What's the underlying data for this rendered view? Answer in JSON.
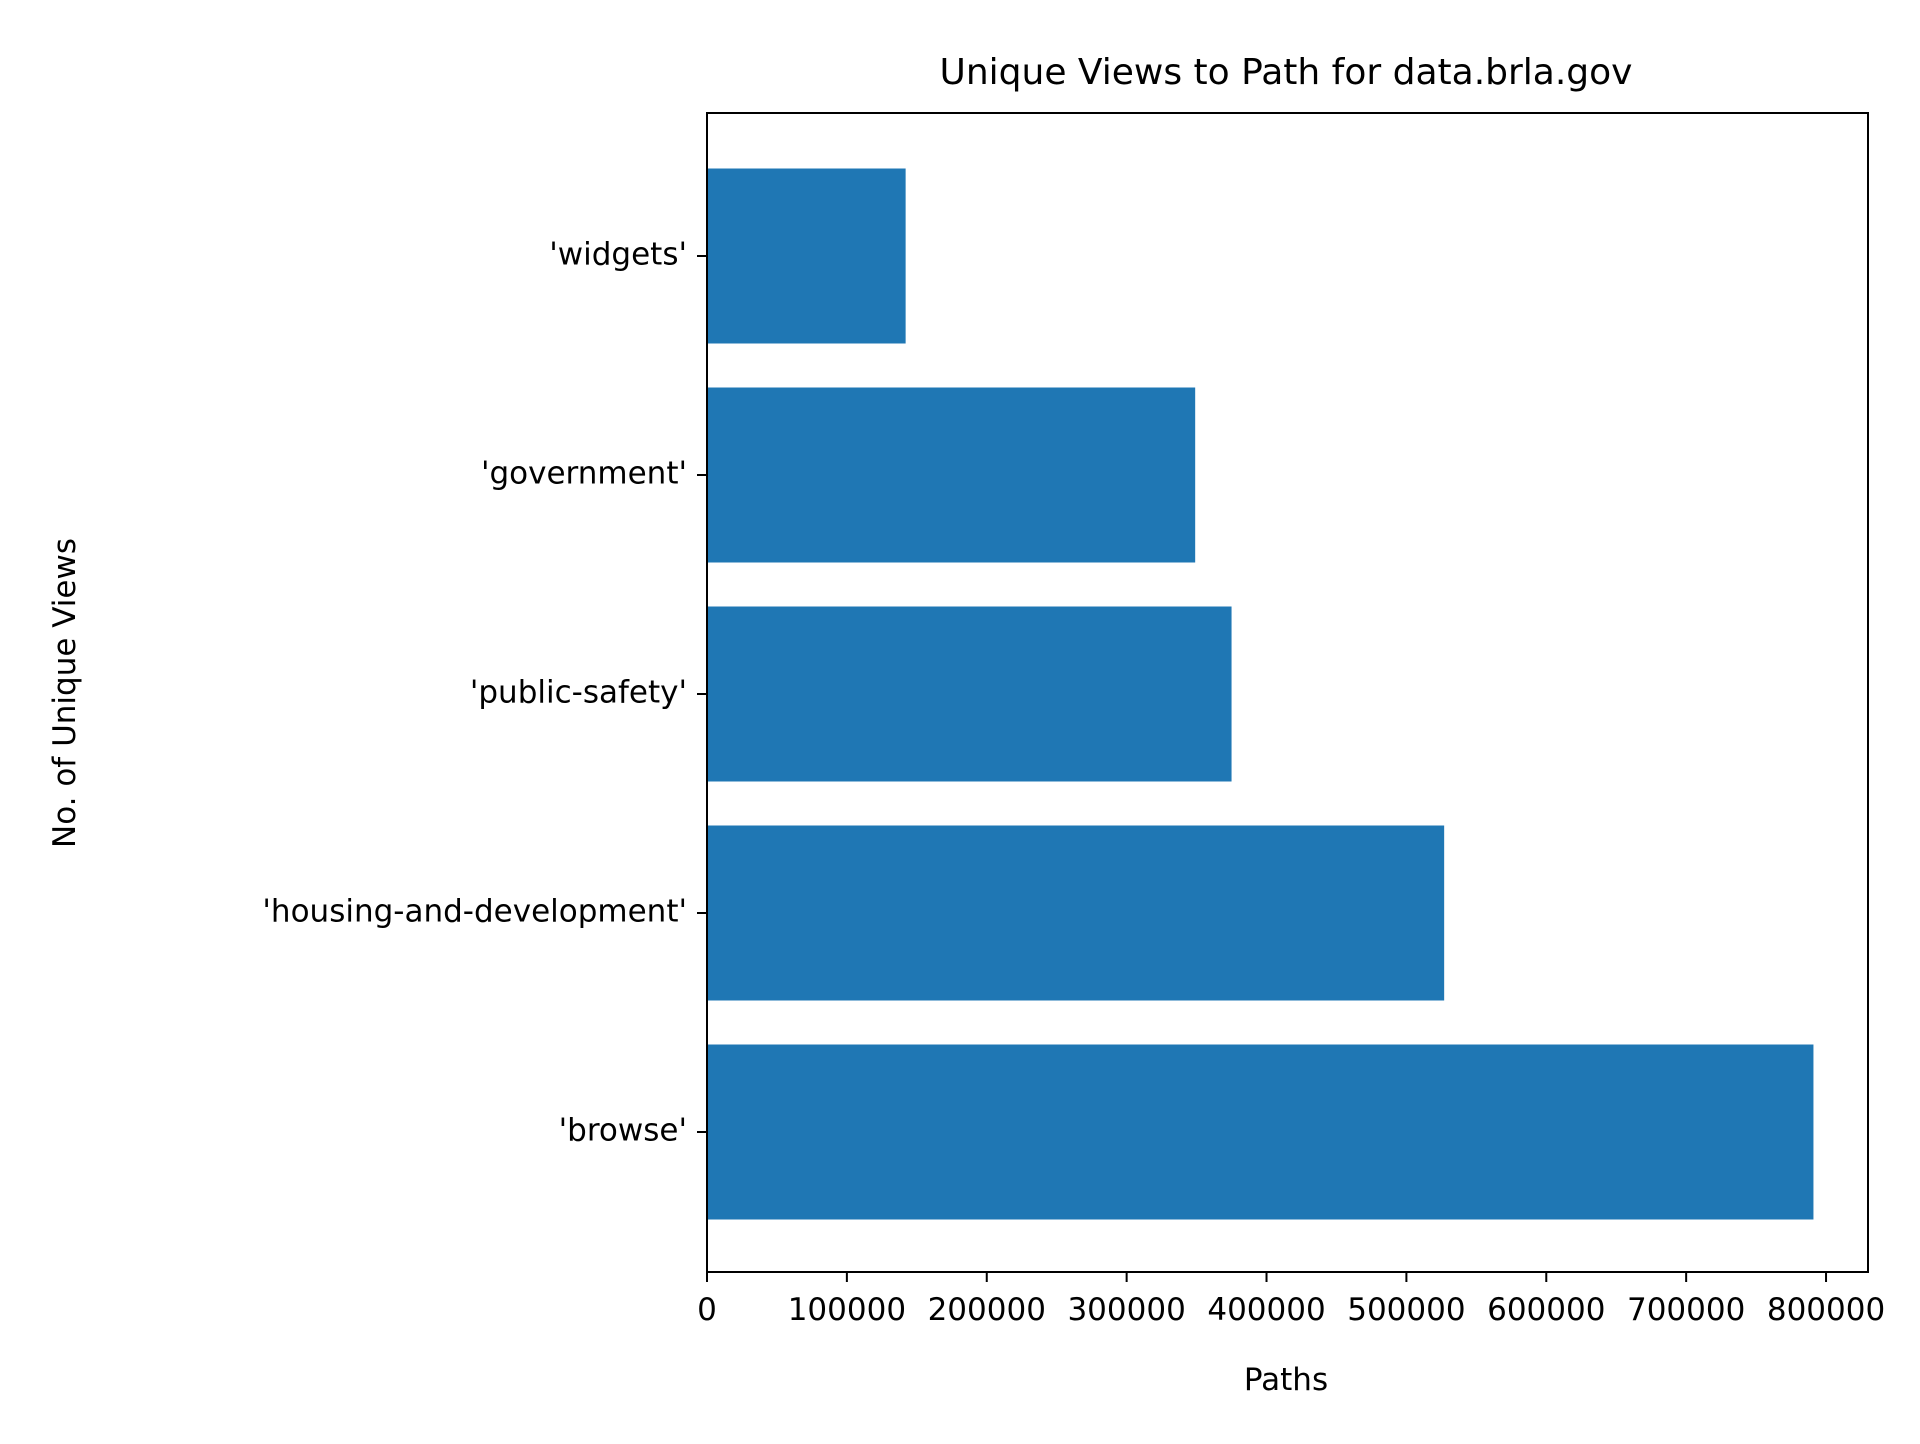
{
  "chart_data": {
    "type": "bar",
    "orientation": "horizontal",
    "title": "Unique Views to Path for data.brla.gov",
    "xlabel": "Paths",
    "ylabel": "No. of Unique Views",
    "categories": [
      "'browse'",
      "'housing-and-development'",
      "'public-safety'",
      "'government'",
      "'widgets'"
    ],
    "values": [
      791000,
      527000,
      375000,
      349000,
      142000
    ],
    "xlim": [
      0,
      830000
    ],
    "xticks": [
      0,
      100000,
      200000,
      300000,
      400000,
      500000,
      600000,
      700000,
      800000
    ],
    "xtick_labels": [
      "0",
      "100000",
      "200000",
      "300000",
      "400000",
      "500000",
      "600000",
      "700000",
      "800000"
    ],
    "grid": false,
    "colors": {
      "bar": "#1f77b4",
      "axis": "#000000",
      "background": "#ffffff"
    }
  }
}
